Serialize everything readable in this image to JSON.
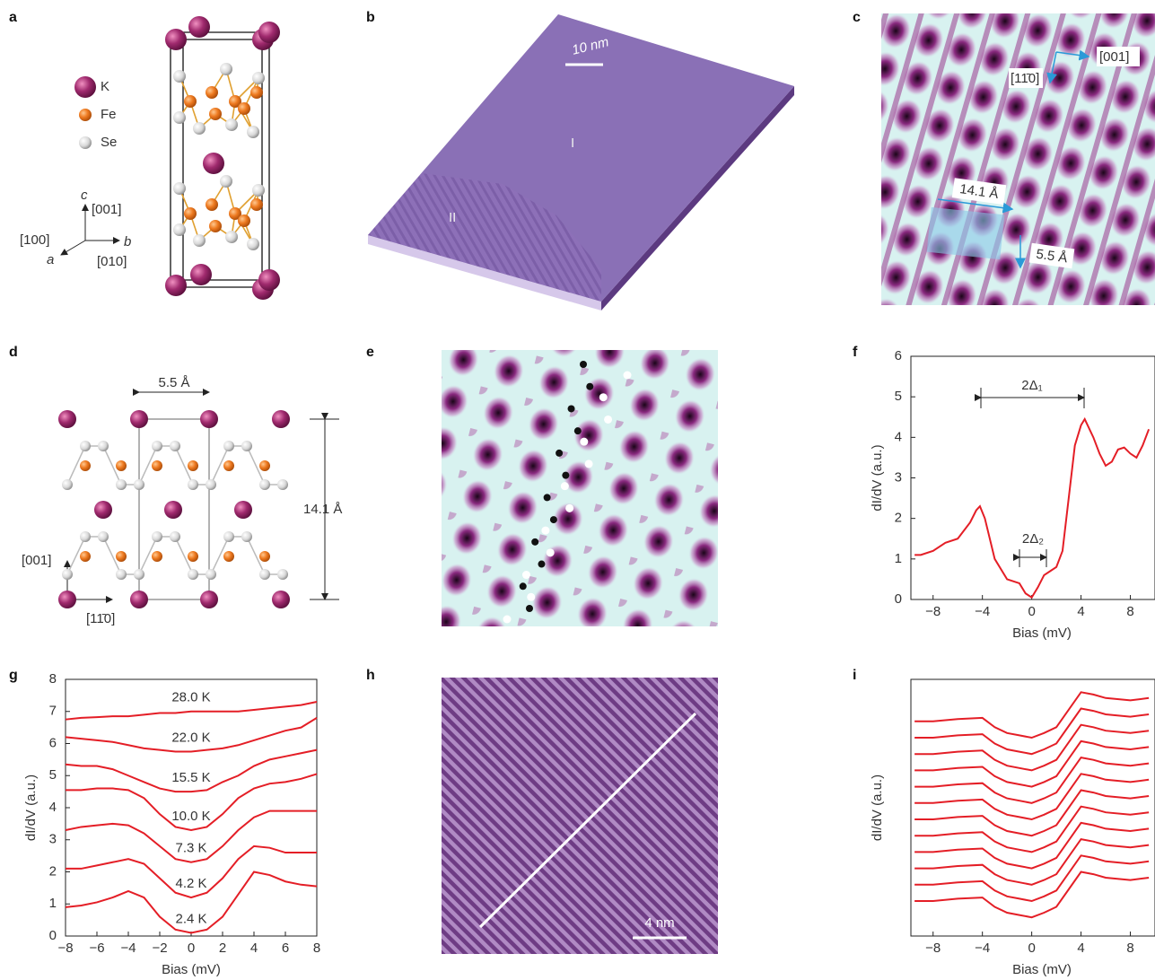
{
  "panel_labels": [
    "a",
    "b",
    "c",
    "d",
    "e",
    "f",
    "g",
    "h",
    "i"
  ],
  "panel_a": {
    "legend": [
      "K",
      "Fe",
      "Se"
    ],
    "axis_c": "c",
    "dir_c": "[001]",
    "axis_a": "a",
    "dir_a": "[100]",
    "axis_b": "b",
    "dir_b": "[010]"
  },
  "panel_b": {
    "scale_bar": "10 nm",
    "terrace_1": "I",
    "terrace_2": "II"
  },
  "panel_c": {
    "direction_1": "[11̄0]",
    "direction_2": "[001]",
    "width": "14.1 Å",
    "height": "5.5 Å"
  },
  "panel_d": {
    "width": "5.5 Å",
    "height": "14.1 Å",
    "direction_1": "[001]",
    "direction_2": "[11̄0]"
  },
  "panel_h": {
    "scale_bar": "4 nm"
  },
  "chart_data": [
    {
      "type": "line",
      "xlabel": "Bias (mV)",
      "ylabel": "dI/dV (a.u.)",
      "annotations": [
        "2Δ₁",
        "2Δ₂"
      ],
      "xlim": [
        -9.8,
        10
      ],
      "xticks": [
        {
          "value": -8,
          "label": "−8"
        },
        {
          "value": -4,
          "label": "−4"
        },
        0,
        4,
        8
      ],
      "ylim": [
        0,
        6
      ],
      "yticks": [
        0,
        1,
        2,
        3,
        4,
        5,
        6
      ],
      "x": [
        -9.5,
        -9,
        -8,
        -7,
        -6,
        -5,
        -4.5,
        -4.2,
        -3.8,
        -3,
        -2,
        -1.5,
        -1,
        -0.5,
        0,
        0.5,
        1,
        1.5,
        2,
        2.5,
        3,
        3.5,
        4,
        4.3,
        5,
        5.5,
        6,
        6.5,
        7,
        7.5,
        8,
        8.5,
        9,
        9.5
      ],
      "series": [
        {
          "color": "#e41e26",
          "values": [
            1.1,
            1.1,
            1.2,
            1.4,
            1.5,
            1.9,
            2.2,
            2.3,
            2.0,
            1.0,
            0.5,
            0.45,
            0.4,
            0.15,
            0.05,
            0.3,
            0.6,
            0.7,
            0.8,
            1.2,
            2.5,
            3.8,
            4.3,
            4.45,
            4.0,
            3.6,
            3.3,
            3.4,
            3.7,
            3.75,
            3.6,
            3.5,
            3.8,
            4.2
          ]
        }
      ]
    },
    {
      "type": "line",
      "xlabel": "Bias (mV)",
      "ylabel": "dI/dV (a.u.)",
      "xlim": [
        -8,
        8
      ],
      "xticks": [
        {
          "value": -8,
          "label": "−8"
        },
        {
          "value": -6,
          "label": "−6"
        },
        {
          "value": -4,
          "label": "−4"
        },
        {
          "value": -2,
          "label": "−2"
        },
        0,
        2,
        4,
        6,
        8
      ],
      "ylim": [
        0,
        8
      ],
      "yticks": [
        0,
        1,
        2,
        3,
        4,
        5,
        6,
        7,
        8
      ],
      "x": [
        -8,
        -7,
        -6,
        -5,
        -4,
        -3,
        -2,
        -1,
        0,
        1,
        2,
        3,
        4,
        5,
        6,
        7,
        8
      ],
      "series": [
        {
          "name": "2.4 K",
          "color": "#e41e26",
          "values": [
            0.9,
            0.95,
            1.05,
            1.2,
            1.4,
            1.2,
            0.6,
            0.2,
            0.1,
            0.2,
            0.6,
            1.3,
            2.0,
            1.9,
            1.7,
            1.6,
            1.55
          ]
        },
        {
          "name": "4.2 K",
          "color": "#e41e26",
          "values": [
            2.1,
            2.1,
            2.2,
            2.3,
            2.4,
            2.25,
            1.8,
            1.35,
            1.2,
            1.35,
            1.8,
            2.4,
            2.8,
            2.75,
            2.6,
            2.6,
            2.6
          ]
        },
        {
          "name": "7.3 K",
          "color": "#e41e26",
          "values": [
            3.3,
            3.4,
            3.45,
            3.5,
            3.45,
            3.2,
            2.8,
            2.4,
            2.3,
            2.4,
            2.8,
            3.3,
            3.7,
            3.9,
            3.9,
            3.9,
            3.9
          ]
        },
        {
          "name": "10.0 K",
          "color": "#e41e26",
          "values": [
            4.55,
            4.55,
            4.6,
            4.6,
            4.55,
            4.3,
            3.8,
            3.4,
            3.3,
            3.4,
            3.8,
            4.3,
            4.6,
            4.75,
            4.8,
            4.9,
            5.05
          ]
        },
        {
          "name": "15.5 K",
          "color": "#e41e26",
          "values": [
            5.35,
            5.3,
            5.3,
            5.2,
            5.0,
            4.8,
            4.6,
            4.5,
            4.5,
            4.55,
            4.8,
            5.0,
            5.3,
            5.5,
            5.6,
            5.7,
            5.8
          ]
        },
        {
          "name": "22.0 K",
          "color": "#e41e26",
          "values": [
            6.2,
            6.15,
            6.1,
            6.05,
            5.95,
            5.85,
            5.8,
            5.75,
            5.75,
            5.8,
            5.85,
            5.95,
            6.1,
            6.25,
            6.4,
            6.5,
            6.8
          ]
        },
        {
          "name": "28.0 K",
          "color": "#e41e26",
          "values": [
            6.75,
            6.8,
            6.82,
            6.85,
            6.85,
            6.9,
            6.95,
            6.95,
            7.0,
            7.0,
            7.0,
            7.0,
            7.05,
            7.1,
            7.15,
            7.2,
            7.3
          ]
        }
      ]
    },
    {
      "type": "line",
      "xlabel": "Bias (mV)",
      "ylabel": "dI/dV (a.u.)",
      "xlim": [
        -9.8,
        10
      ],
      "xticks": [
        {
          "value": -8,
          "label": "−8"
        },
        {
          "value": -4,
          "label": "−4"
        },
        0,
        4,
        8
      ],
      "ylim": [
        0,
        22
      ],
      "x": [
        -9.5,
        -8,
        -6,
        -4,
        -3,
        -2,
        -1,
        0,
        1,
        2,
        3,
        4,
        5,
        6,
        8,
        9.5
      ],
      "series": [
        {
          "color": "#e41e26",
          "values": [
            3,
            3,
            3.2,
            3.3,
            2.5,
            2,
            1.8,
            1.6,
            2,
            2.5,
            4,
            5.5,
            5.3,
            5,
            4.8,
            5
          ]
        },
        {
          "color": "#e41e26",
          "values": [
            4.4,
            4.4,
            4.6,
            4.7,
            3.9,
            3.4,
            3.2,
            3,
            3.4,
            3.9,
            5.4,
            6.9,
            6.7,
            6.4,
            6.2,
            6.4
          ]
        },
        {
          "color": "#e41e26",
          "values": [
            5.8,
            5.8,
            6,
            6.1,
            5.3,
            4.8,
            4.6,
            4.4,
            4.8,
            5.3,
            6.8,
            8.3,
            8.1,
            7.8,
            7.6,
            7.8
          ]
        },
        {
          "color": "#e41e26",
          "values": [
            7.2,
            7.2,
            7.4,
            7.5,
            6.7,
            6.2,
            6,
            5.8,
            6.2,
            6.7,
            8.2,
            9.7,
            9.5,
            9.2,
            9,
            9.2
          ]
        },
        {
          "color": "#e41e26",
          "values": [
            8.6,
            8.6,
            8.8,
            8.9,
            8.1,
            7.6,
            7.4,
            7.2,
            7.6,
            8.1,
            9.6,
            11.1,
            10.9,
            10.6,
            10.4,
            10.6
          ]
        },
        {
          "color": "#e41e26",
          "values": [
            10,
            10,
            10.2,
            10.3,
            9.5,
            9,
            8.8,
            8.6,
            9,
            9.5,
            11,
            12.5,
            12.3,
            12,
            11.8,
            12
          ]
        },
        {
          "color": "#e41e26",
          "values": [
            11.4,
            11.4,
            11.6,
            11.7,
            10.9,
            10.4,
            10.2,
            10,
            10.4,
            10.9,
            12.4,
            13.9,
            13.7,
            13.4,
            13.2,
            13.4
          ]
        },
        {
          "color": "#e41e26",
          "values": [
            12.8,
            12.8,
            13,
            13.1,
            12.3,
            11.8,
            11.6,
            11.4,
            11.8,
            12.3,
            13.8,
            15.3,
            15.1,
            14.8,
            14.6,
            14.8
          ]
        },
        {
          "color": "#e41e26",
          "values": [
            14.2,
            14.2,
            14.4,
            14.5,
            13.7,
            13.2,
            13,
            12.8,
            13.2,
            13.7,
            15.2,
            16.7,
            16.5,
            16.2,
            16,
            16.2
          ]
        },
        {
          "color": "#e41e26",
          "values": [
            15.6,
            15.6,
            15.8,
            15.9,
            15.1,
            14.6,
            14.4,
            14.2,
            14.6,
            15.1,
            16.6,
            18.1,
            17.9,
            17.6,
            17.4,
            17.6
          ]
        },
        {
          "color": "#e41e26",
          "values": [
            17,
            17,
            17.2,
            17.3,
            16.5,
            16,
            15.8,
            15.6,
            16,
            16.5,
            18,
            19.5,
            19.3,
            19,
            18.8,
            19
          ]
        },
        {
          "color": "#e41e26",
          "values": [
            18.4,
            18.4,
            18.6,
            18.7,
            17.9,
            17.4,
            17.2,
            17,
            17.4,
            17.9,
            19.4,
            20.9,
            20.7,
            20.4,
            20.2,
            20.4
          ]
        }
      ]
    }
  ]
}
